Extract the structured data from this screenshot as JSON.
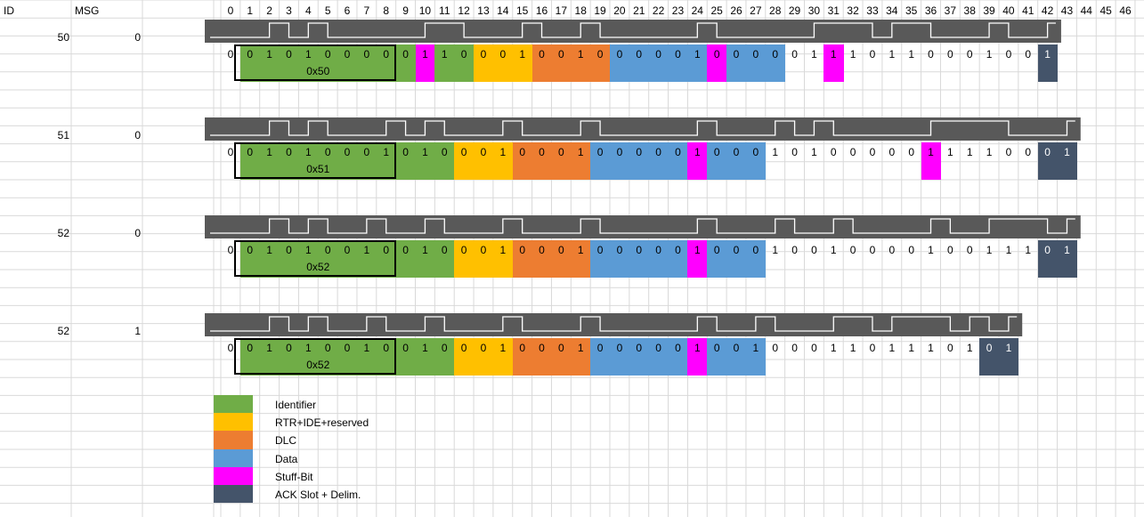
{
  "header": {
    "id_label": "ID",
    "msg_label": "MSG",
    "columns": [
      "0",
      "1",
      "2",
      "3",
      "4",
      "5",
      "6",
      "7",
      "8",
      "9",
      "10",
      "11",
      "12",
      "13",
      "14",
      "15",
      "16",
      "17",
      "18",
      "19",
      "20",
      "21",
      "22",
      "23",
      "24",
      "25",
      "26",
      "27",
      "28",
      "29",
      "30",
      "31",
      "32",
      "33",
      "34",
      "35",
      "36",
      "37",
      "38",
      "39",
      "40",
      "41",
      "42",
      "43",
      "44",
      "45",
      "46"
    ]
  },
  "colors": {
    "identifier": "#70ad47",
    "rtr_ide": "#ffc000",
    "dlc": "#ed7d31",
    "data": "#5b9bd5",
    "stuff": "#ff00ff",
    "ack": "#44546a",
    "waveform_bg": "#595959",
    "gridline": "#d9d9d9"
  },
  "frames": [
    {
      "id": "50",
      "msg": "0",
      "id_hex": "0x50",
      "bits": [
        "0",
        "0",
        "1",
        "0",
        "1",
        "0",
        "0",
        "0",
        "0",
        "0",
        "1",
        "1",
        "0",
        "0",
        "0",
        "1",
        "0",
        "0",
        "1",
        "0",
        "0",
        "0",
        "0",
        "0",
        "1",
        "0",
        "0",
        "0",
        "0",
        "0",
        "1",
        "1",
        "1",
        "0",
        "1",
        "1",
        "0",
        "0",
        "0",
        "1",
        "0",
        "0",
        "1"
      ],
      "colors": [
        "",
        "identifier",
        "identifier",
        "identifier",
        "identifier",
        "identifier",
        "identifier",
        "identifier",
        "identifier",
        "identifier",
        "stuff",
        "identifier",
        "identifier",
        "rtr_ide",
        "rtr_ide",
        "rtr_ide",
        "dlc",
        "dlc",
        "dlc",
        "dlc",
        "data",
        "data",
        "data",
        "data",
        "data",
        "stuff",
        "data",
        "data",
        "data",
        "",
        "",
        "stuff",
        "",
        "",
        "",
        "",
        "",
        "",
        "",
        "",
        "",
        "",
        "ack"
      ]
    },
    {
      "id": "51",
      "msg": "0",
      "id_hex": "0x51",
      "bits": [
        "0",
        "0",
        "1",
        "0",
        "1",
        "0",
        "0",
        "0",
        "1",
        "0",
        "1",
        "0",
        "0",
        "0",
        "1",
        "0",
        "0",
        "0",
        "1",
        "0",
        "0",
        "0",
        "0",
        "0",
        "1",
        "0",
        "0",
        "0",
        "1",
        "0",
        "1",
        "0",
        "0",
        "0",
        "0",
        "0",
        "1",
        "1",
        "1",
        "1",
        "0",
        "0",
        "0",
        "1"
      ],
      "colors": [
        "",
        "identifier",
        "identifier",
        "identifier",
        "identifier",
        "identifier",
        "identifier",
        "identifier",
        "identifier",
        "identifier",
        "identifier",
        "identifier",
        "rtr_ide",
        "rtr_ide",
        "rtr_ide",
        "dlc",
        "dlc",
        "dlc",
        "dlc",
        "data",
        "data",
        "data",
        "data",
        "data",
        "stuff",
        "data",
        "data",
        "data",
        "",
        "",
        "",
        "",
        "",
        "",
        "",
        "",
        "stuff",
        "",
        "",
        "",
        "",
        "",
        "ack",
        "ack"
      ]
    },
    {
      "id": "52",
      "msg": "0",
      "id_hex": "0x52",
      "bits": [
        "0",
        "0",
        "1",
        "0",
        "1",
        "0",
        "0",
        "1",
        "0",
        "0",
        "1",
        "0",
        "0",
        "0",
        "1",
        "0",
        "0",
        "0",
        "1",
        "0",
        "0",
        "0",
        "0",
        "0",
        "1",
        "0",
        "0",
        "0",
        "1",
        "0",
        "0",
        "1",
        "0",
        "0",
        "0",
        "0",
        "1",
        "0",
        "0",
        "1",
        "1",
        "1",
        "0",
        "1"
      ],
      "colors": [
        "",
        "identifier",
        "identifier",
        "identifier",
        "identifier",
        "identifier",
        "identifier",
        "identifier",
        "identifier",
        "identifier",
        "identifier",
        "identifier",
        "rtr_ide",
        "rtr_ide",
        "rtr_ide",
        "dlc",
        "dlc",
        "dlc",
        "dlc",
        "data",
        "data",
        "data",
        "data",
        "data",
        "stuff",
        "data",
        "data",
        "data",
        "",
        "",
        "",
        "",
        "",
        "",
        "",
        "",
        "",
        "",
        "",
        "",
        "",
        "",
        "ack",
        "ack"
      ]
    },
    {
      "id": "52",
      "msg": "1",
      "id_hex": "0x52",
      "bits": [
        "0",
        "0",
        "1",
        "0",
        "1",
        "0",
        "0",
        "1",
        "0",
        "0",
        "1",
        "0",
        "0",
        "0",
        "1",
        "0",
        "0",
        "0",
        "1",
        "0",
        "0",
        "0",
        "0",
        "0",
        "1",
        "0",
        "0",
        "1",
        "0",
        "0",
        "0",
        "1",
        "1",
        "0",
        "1",
        "1",
        "1",
        "0",
        "1",
        "0",
        "1"
      ],
      "colors": [
        "",
        "identifier",
        "identifier",
        "identifier",
        "identifier",
        "identifier",
        "identifier",
        "identifier",
        "identifier",
        "identifier",
        "identifier",
        "identifier",
        "rtr_ide",
        "rtr_ide",
        "rtr_ide",
        "dlc",
        "dlc",
        "dlc",
        "dlc",
        "data",
        "data",
        "data",
        "data",
        "data",
        "stuff",
        "data",
        "data",
        "data",
        "",
        "",
        "",
        "",
        "",
        "",
        "",
        "",
        "",
        "",
        "",
        "ack",
        "ack"
      ]
    }
  ],
  "legend": [
    {
      "key": "identifier",
      "label": "Identifier"
    },
    {
      "key": "rtr_ide",
      "label": "RTR+IDE+reserved"
    },
    {
      "key": "dlc",
      "label": "DLC"
    },
    {
      "key": "data",
      "label": "Data"
    },
    {
      "key": "stuff",
      "label": "Stuff-Bit"
    },
    {
      "key": "ack",
      "label": "ACK Slot + Delim."
    }
  ]
}
